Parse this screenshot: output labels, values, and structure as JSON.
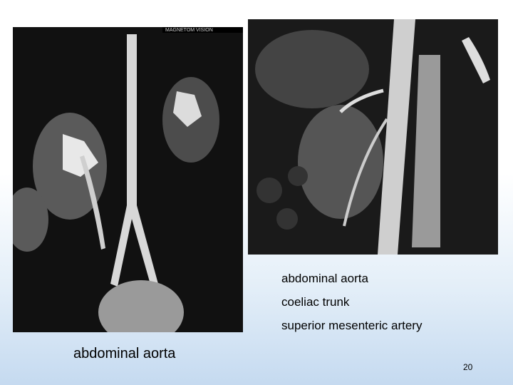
{
  "slide": {
    "images": [
      {
        "overlay_text": "MAGNETOM VISION"
      }
    ],
    "labels": [
      "abdominal aorta",
      "coeliac trunk",
      "superior mesenteric artery"
    ],
    "caption": "abdominal aorta",
    "page_number": "20"
  }
}
